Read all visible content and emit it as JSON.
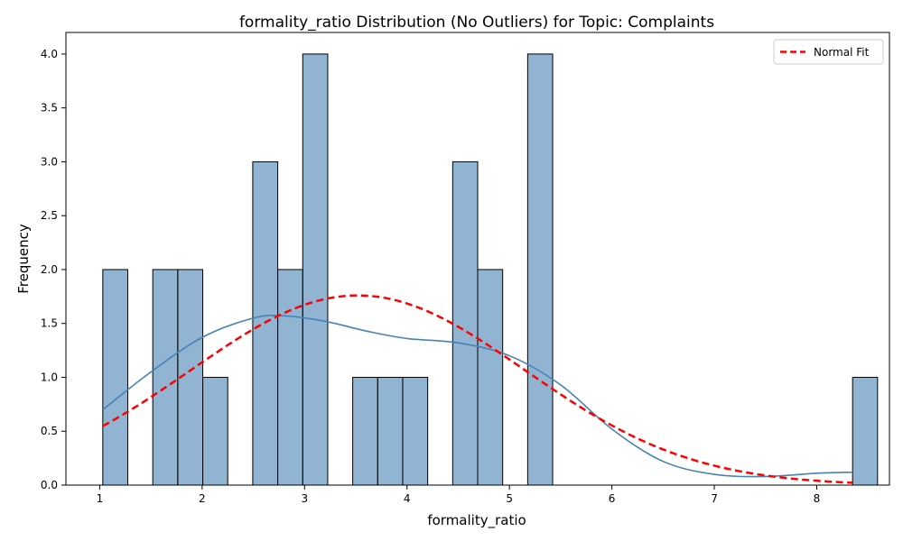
{
  "chart_data": {
    "type": "bar",
    "title": "formality_ratio Distribution (No Outliers) for Topic: Complaints",
    "xlabel": "formality_ratio",
    "ylabel": "Frequency",
    "xlim": [
      0.67,
      8.71
    ],
    "ylim": [
      0,
      4.2
    ],
    "xticks": [
      1,
      2,
      3,
      4,
      5,
      6,
      7,
      8
    ],
    "yticks": [
      "0.0",
      "0.5",
      "1.0",
      "1.5",
      "2.0",
      "2.5",
      "3.0",
      "3.5",
      "4.0"
    ],
    "legend": {
      "placement": "top-right",
      "entries": [
        "Normal Fit"
      ]
    },
    "grid": false,
    "histogram": {
      "bin_start": 1.03,
      "bin_width": 0.244,
      "counts": [
        2,
        0,
        2,
        2,
        1,
        0,
        3,
        2,
        4,
        0,
        1,
        1,
        1,
        0,
        3,
        2,
        0,
        4,
        0,
        0,
        0,
        0,
        0,
        0,
        0,
        0,
        0,
        0,
        0,
        0,
        1
      ],
      "color": "#4682b4",
      "edge_color": "#000000"
    },
    "series": [
      {
        "kind": "kde",
        "color": "#4682b4",
        "x": [
          1.03,
          1.5,
          2.0,
          2.5,
          2.8,
          3.2,
          3.6,
          4.0,
          4.5,
          5.0,
          5.5,
          6.0,
          6.5,
          7.0,
          7.5,
          8.0,
          8.35
        ],
        "y": [
          0.7,
          1.05,
          1.37,
          1.55,
          1.57,
          1.52,
          1.43,
          1.36,
          1.32,
          1.2,
          0.93,
          0.52,
          0.22,
          0.1,
          0.08,
          0.11,
          0.12
        ]
      },
      {
        "name": "Normal Fit",
        "kind": "normal",
        "color": "#ff0000",
        "mean": 3.52,
        "std": 1.63,
        "peak": 1.76,
        "x_range": [
          1.03,
          8.35
        ]
      }
    ]
  }
}
